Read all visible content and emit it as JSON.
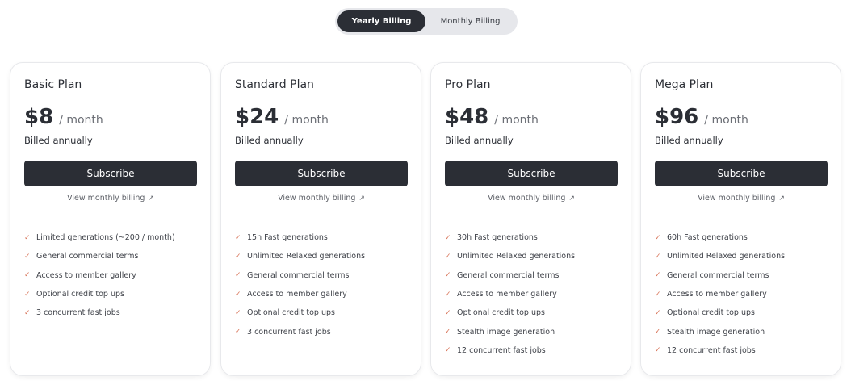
{
  "billing_toggle": {
    "yearly": "Yearly Billing",
    "monthly": "Monthly Billing",
    "selected": "yearly"
  },
  "accent_color": "#d9765b",
  "plans": [
    {
      "name": "Basic Plan",
      "price": "$8",
      "period": "/ month",
      "billed": "Billed annually",
      "cta": "Subscribe",
      "link": "View monthly billing",
      "features": [
        "Limited generations (~200 / month)",
        "General commercial terms",
        "Access to member gallery",
        "Optional credit top ups",
        "3 concurrent fast jobs"
      ]
    },
    {
      "name": "Standard Plan",
      "price": "$24",
      "period": "/ month",
      "billed": "Billed annually",
      "cta": "Subscribe",
      "link": "View monthly billing",
      "features": [
        "15h Fast generations",
        "Unlimited Relaxed generations",
        "General commercial terms",
        "Access to member gallery",
        "Optional credit top ups",
        "3 concurrent fast jobs"
      ]
    },
    {
      "name": "Pro Plan",
      "price": "$48",
      "period": "/ month",
      "billed": "Billed annually",
      "cta": "Subscribe",
      "link": "View monthly billing",
      "features": [
        "30h Fast generations",
        "Unlimited Relaxed generations",
        "General commercial terms",
        "Access to member gallery",
        "Optional credit top ups",
        "Stealth image generation",
        "12 concurrent fast jobs"
      ]
    },
    {
      "name": "Mega Plan",
      "price": "$96",
      "period": "/ month",
      "billed": "Billed annually",
      "cta": "Subscribe",
      "link": "View monthly billing",
      "features": [
        "60h Fast generations",
        "Unlimited Relaxed generations",
        "General commercial terms",
        "Access to member gallery",
        "Optional credit top ups",
        "Stealth image generation",
        "12 concurrent fast jobs"
      ]
    }
  ]
}
